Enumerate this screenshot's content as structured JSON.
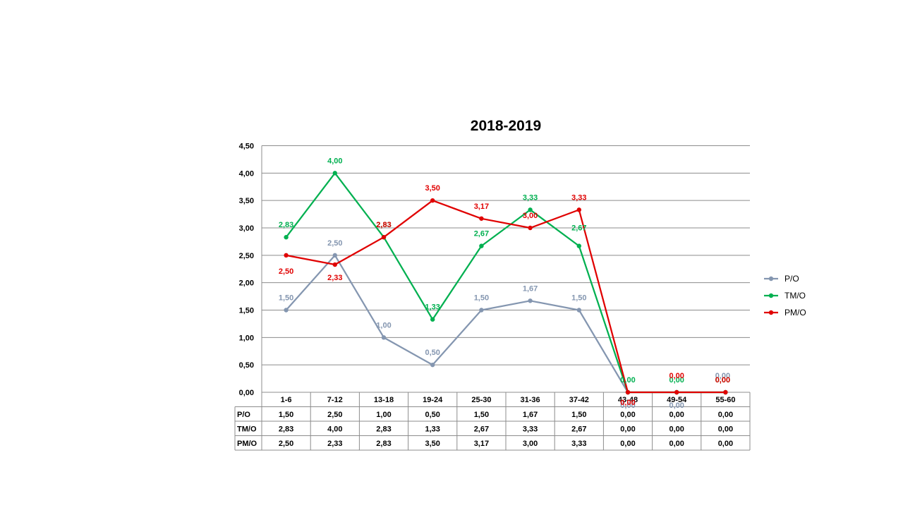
{
  "chart_data": {
    "type": "line",
    "title": "2018-2019",
    "categories": [
      "1-6",
      "7-12",
      "13-18",
      "19-24",
      "25-30",
      "31-36",
      "37-42",
      "43-48",
      "49-54",
      "55-60"
    ],
    "ylim": [
      0,
      4.5
    ],
    "yticks": [
      0,
      0.5,
      1,
      1.5,
      2,
      2.5,
      3,
      3.5,
      4,
      4.5
    ],
    "ytick_labels": [
      "0,00",
      "0,50",
      "1,00",
      "1,50",
      "2,00",
      "2,50",
      "3,00",
      "3,50",
      "4,00",
      "4,50"
    ],
    "grid": true,
    "legend": "right",
    "data_table": true,
    "series": [
      {
        "name": "P/O",
        "color": "#8496b0",
        "values": [
          1.5,
          2.5,
          1.0,
          0.5,
          1.5,
          1.67,
          1.5,
          0,
          0,
          0
        ],
        "labels": [
          "1,50",
          "2,50",
          "1,00",
          "0,50",
          "1,50",
          "1,67",
          "1,50",
          "0,00",
          "0,00",
          "0,00"
        ]
      },
      {
        "name": "TM/O",
        "color": "#00b050",
        "values": [
          2.83,
          4.0,
          2.83,
          1.33,
          2.67,
          3.33,
          2.67,
          0,
          0,
          0
        ],
        "labels": [
          "2,83",
          "4,00",
          "2,83",
          "1,33",
          "2,67",
          "3,33",
          "2,67",
          "0,00",
          "0,00",
          "0,00"
        ]
      },
      {
        "name": "PM/O",
        "color": "#e00000",
        "values": [
          2.5,
          2.33,
          2.83,
          3.5,
          3.17,
          3.0,
          3.33,
          0,
          0,
          0
        ],
        "labels": [
          "2,50",
          "2,33",
          "2,83",
          "3,50",
          "3,17",
          "3,00",
          "3,33",
          "0,00",
          "0,00",
          "0,00"
        ]
      }
    ]
  }
}
